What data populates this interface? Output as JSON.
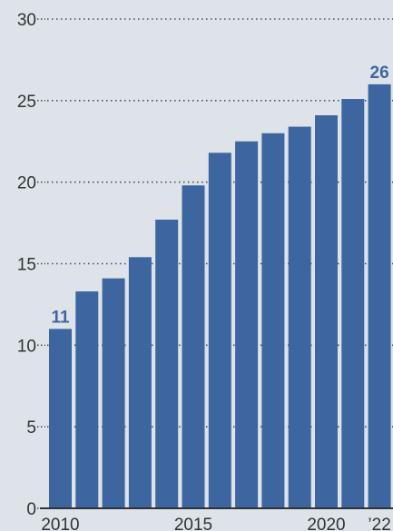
{
  "chart_data": {
    "type": "bar",
    "categories": [
      "2010",
      "2011",
      "2012",
      "2013",
      "2014",
      "2015",
      "2016",
      "2017",
      "2018",
      "2019",
      "2020",
      "2021",
      "2022"
    ],
    "values": [
      11,
      13.3,
      14.1,
      15.4,
      17.7,
      19.8,
      21.8,
      22.5,
      23.0,
      23.4,
      24.1,
      25.1,
      26
    ],
    "data_labels": [
      {
        "category": "2010",
        "text": "11"
      },
      {
        "category": "2022",
        "text": "26"
      }
    ],
    "x_tick_labels": [
      {
        "category": "2010",
        "text": "2010"
      },
      {
        "category": "2015",
        "text": "2015"
      },
      {
        "category": "2020",
        "text": "2020"
      },
      {
        "category": "2022",
        "text": "’22"
      }
    ],
    "y_ticks": [
      0,
      5,
      10,
      15,
      20,
      25,
      30
    ],
    "ylim": [
      0,
      30
    ],
    "grid": "dotted horizontal",
    "title": "",
    "xlabel": "",
    "ylabel": "",
    "colors": {
      "bar": "#3d66a0",
      "label": "#3d66a0",
      "text": "#2f3338",
      "grid": "#4a4f55",
      "background": "#dde3e8"
    }
  }
}
